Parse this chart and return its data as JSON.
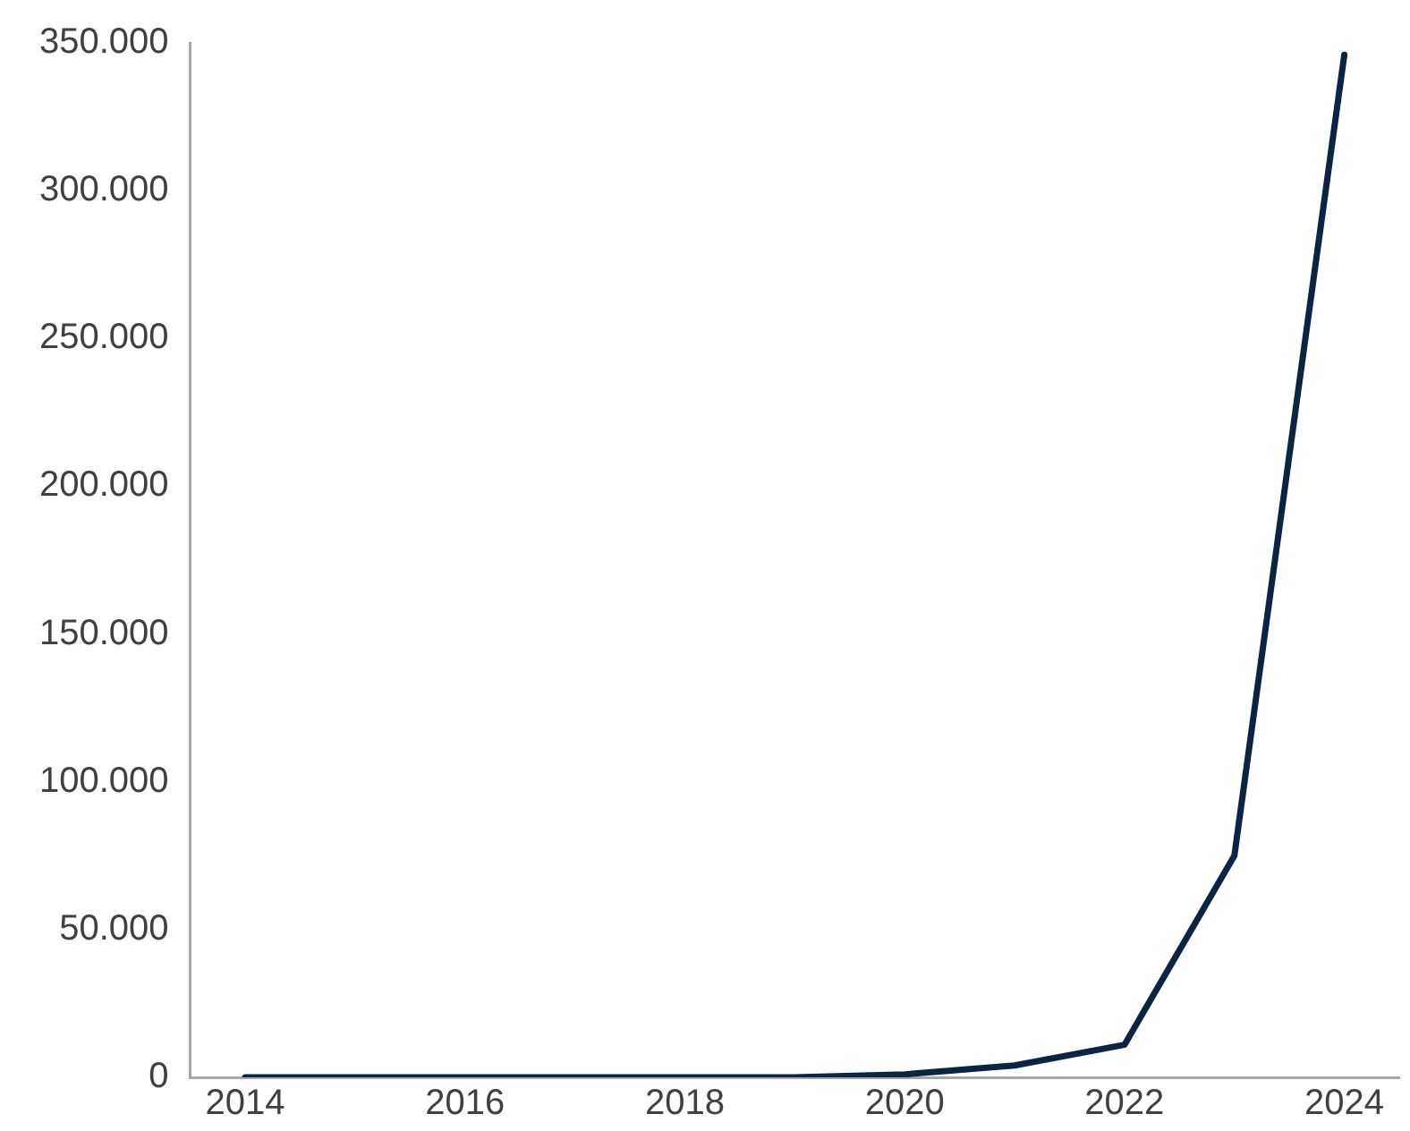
{
  "chart_data": {
    "type": "line",
    "x": [
      2014,
      2015,
      2016,
      2017,
      2018,
      2019,
      2020,
      2021,
      2022,
      2023,
      2024
    ],
    "series": [
      {
        "color": "#0c2443",
        "values": [
          0,
          0,
          0,
          0,
          0,
          0,
          1000,
          4000,
          11000,
          75000,
          346000
        ]
      }
    ],
    "xlim": [
      2013.5,
      2024.5
    ],
    "xticks": [
      2014,
      2016,
      2018,
      2020,
      2022,
      2024
    ],
    "ylim": [
      0,
      350000
    ],
    "yticks": [
      0,
      {
        "value": 50000,
        "label": "50.000"
      },
      {
        "value": 100000,
        "label": "100.000"
      },
      {
        "value": 150000,
        "label": "150.000"
      },
      {
        "value": 200000,
        "label": "200.000"
      },
      {
        "value": 250000,
        "label": "250.000"
      },
      {
        "value": 300000,
        "label": "300.000"
      },
      {
        "value": 350000,
        "label": "350.000"
      }
    ],
    "grid": false,
    "legend": false,
    "marker": "none",
    "line_style": "solid"
  }
}
